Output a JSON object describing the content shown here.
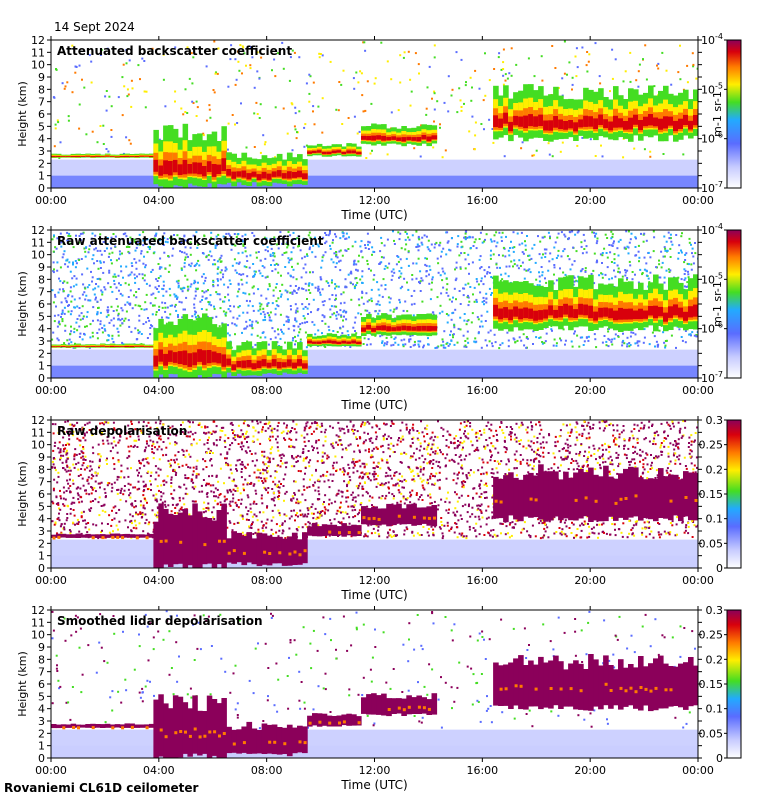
{
  "header": {
    "date": "14 Sept 2024"
  },
  "footer": {
    "site": "Rovaniemi CL61D ceilometer"
  },
  "axes": {
    "ylabel": "Height (km)",
    "xlabel": "Time (UTC)",
    "yticks": [
      "0",
      "1",
      "2",
      "3",
      "4",
      "5",
      "6",
      "7",
      "8",
      "9",
      "10",
      "11",
      "12"
    ],
    "xticks": [
      "00:00",
      "04:00",
      "08:00",
      "12:00",
      "16:00",
      "20:00",
      "00:00"
    ]
  },
  "colors": {
    "bg_white": "#ffffff",
    "low_blue": "#5a6cff",
    "faint_blue": "#c8ccff",
    "green": "#44dd22",
    "yellow": "#ffee00",
    "orange": "#ff7a00",
    "red": "#d8000c",
    "purple": "#8b005a"
  },
  "chart_data": [
    {
      "type": "heatmap",
      "title": "Attenuated backscatter coefficient",
      "xlabel": "Time (UTC)",
      "ylabel": "Height (km)",
      "xlim": [
        0,
        24
      ],
      "ylim": [
        0,
        12
      ],
      "colorbar": {
        "scale": "log",
        "ticks": [
          "10-7",
          "10-6",
          "10-5",
          "10-4"
        ],
        "unit": "m-1 sr-1"
      },
      "noise": "light",
      "cloud_layers": [
        {
          "t0": 0.0,
          "t1": 4.0,
          "base": 2.45,
          "top": 2.75
        },
        {
          "t0": 3.8,
          "t1": 6.5,
          "base": 0.05,
          "top": 4.5
        },
        {
          "t0": 6.5,
          "t1": 9.5,
          "base": 0.3,
          "top": 2.6
        },
        {
          "t0": 9.5,
          "t1": 11.5,
          "base": 2.6,
          "top": 3.5
        },
        {
          "t0": 11.5,
          "t1": 14.3,
          "base": 3.5,
          "top": 5.0
        },
        {
          "t0": 16.4,
          "t1": 24.0,
          "base": 4.0,
          "top": 7.8
        }
      ]
    },
    {
      "type": "heatmap",
      "title": "Raw attenuated backscatter coefficient",
      "xlabel": "Time (UTC)",
      "ylabel": "Height (km)",
      "xlim": [
        0,
        24
      ],
      "ylim": [
        0,
        12
      ],
      "colorbar": {
        "scale": "log",
        "ticks": [
          "10-7",
          "10-6",
          "10-5",
          "10-4"
        ],
        "unit": "m-1 sr-1"
      },
      "noise": "heavy",
      "cloud_layers": [
        {
          "t0": 0.0,
          "t1": 4.0,
          "base": 2.45,
          "top": 2.75
        },
        {
          "t0": 3.8,
          "t1": 6.5,
          "base": 0.05,
          "top": 4.5
        },
        {
          "t0": 6.5,
          "t1": 9.5,
          "base": 0.3,
          "top": 2.6
        },
        {
          "t0": 9.5,
          "t1": 11.5,
          "base": 2.6,
          "top": 3.5
        },
        {
          "t0": 11.5,
          "t1": 14.3,
          "base": 3.5,
          "top": 5.0
        },
        {
          "t0": 16.4,
          "t1": 24.0,
          "base": 4.0,
          "top": 7.8
        }
      ]
    },
    {
      "type": "heatmap",
      "title": "Raw depolarisation",
      "xlabel": "Time (UTC)",
      "ylabel": "Height (km)",
      "xlim": [
        0,
        24
      ],
      "ylim": [
        0,
        12
      ],
      "colorbar": {
        "scale": "linear",
        "ticks": [
          "0",
          "0.05",
          "0.1",
          "0.15",
          "0.2",
          "0.25",
          "0.3"
        ]
      },
      "noise": "depol",
      "cloud_layers": [
        {
          "t0": 0.0,
          "t1": 4.0,
          "base": 2.45,
          "top": 2.75
        },
        {
          "t0": 3.8,
          "t1": 6.5,
          "base": 0.05,
          "top": 4.5
        },
        {
          "t0": 6.5,
          "t1": 9.5,
          "base": 0.3,
          "top": 2.6
        },
        {
          "t0": 9.5,
          "t1": 11.5,
          "base": 2.6,
          "top": 3.5
        },
        {
          "t0": 11.5,
          "t1": 14.3,
          "base": 3.5,
          "top": 5.0
        },
        {
          "t0": 16.4,
          "t1": 24.0,
          "base": 4.0,
          "top": 7.8
        }
      ]
    },
    {
      "type": "heatmap",
      "title": "Smoothed lidar depolarisation",
      "xlabel": "Time (UTC)",
      "ylabel": "Height (km)",
      "xlim": [
        0,
        24
      ],
      "ylim": [
        0,
        12
      ],
      "colorbar": {
        "scale": "linear",
        "ticks": [
          "0",
          "0.05",
          "0.1",
          "0.15",
          "0.2",
          "0.25",
          "0.3"
        ]
      },
      "noise": "sparse",
      "cloud_layers": [
        {
          "t0": 0.0,
          "t1": 4.0,
          "base": 2.45,
          "top": 2.75
        },
        {
          "t0": 3.8,
          "t1": 6.5,
          "base": 0.05,
          "top": 4.5
        },
        {
          "t0": 6.5,
          "t1": 9.5,
          "base": 0.3,
          "top": 2.6
        },
        {
          "t0": 9.5,
          "t1": 11.5,
          "base": 2.6,
          "top": 3.5
        },
        {
          "t0": 11.5,
          "t1": 14.3,
          "base": 3.5,
          "top": 5.0
        },
        {
          "t0": 16.4,
          "t1": 24.0,
          "base": 4.0,
          "top": 7.8
        }
      ]
    }
  ]
}
